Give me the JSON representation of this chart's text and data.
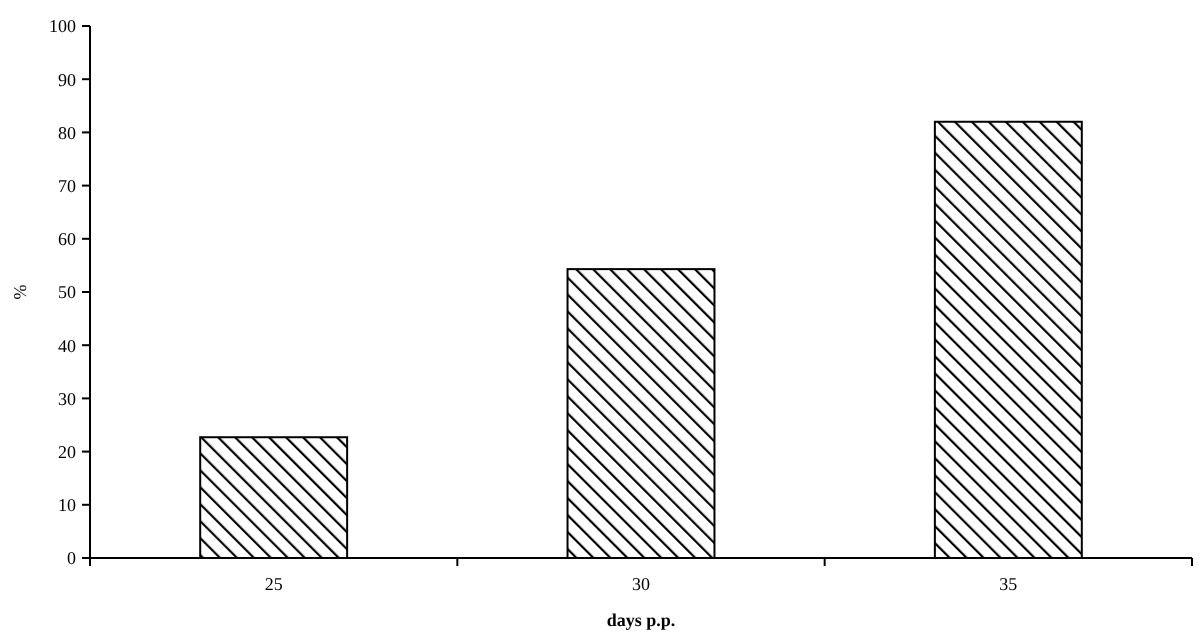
{
  "chart_data": {
    "type": "bar",
    "xlabel": "days p.p.",
    "ylabel": "%",
    "categories": [
      "25",
      "30",
      "35"
    ],
    "values": [
      22.7,
      54.3,
      82.0
    ],
    "color": "#000000",
    "ylim": [
      0,
      100
    ],
    "yticks": [
      0,
      10,
      20,
      30,
      40,
      50,
      60,
      70,
      80,
      90,
      100
    ],
    "grid": false
  }
}
